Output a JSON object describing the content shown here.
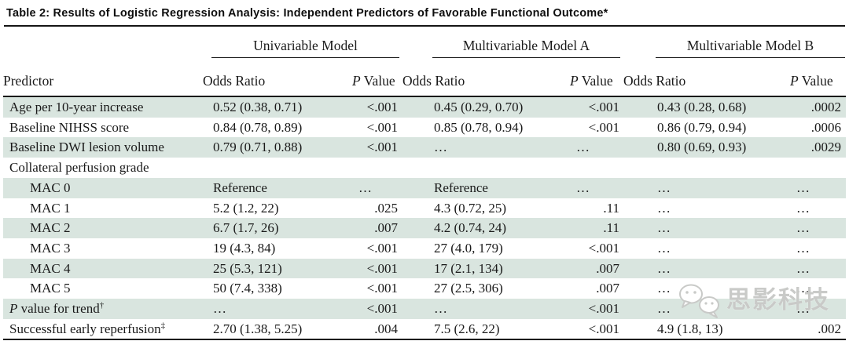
{
  "title": "Table 2: Results of Logistic Regression Analysis: Independent Predictors of Favorable Functional Outcome*",
  "colors": {
    "row_stripe": "#d9e5df",
    "text": "#1a1a1a",
    "rule": "#141414",
    "watermark_gray": "#c9cac8"
  },
  "table": {
    "predictor_header": "Predictor",
    "groups": [
      "Univariable Model",
      "Multivariable Model A",
      "Multivariable Model B"
    ],
    "or_header": "Odds Ratio",
    "p_header": {
      "italic": "P",
      "rest": " Value"
    },
    "rows": [
      {
        "predictor": "Age per 10-year increase",
        "cells": [
          "0.52 (0.38, 0.71)",
          "<.001",
          "0.45 (0.29, 0.70)",
          "<.001",
          "0.43 (0.28, 0.68)",
          ".0002"
        ]
      },
      {
        "predictor": "Baseline NIHSS score",
        "cells": [
          "0.84 (0.78, 0.89)",
          "<.001",
          "0.85 (0.78, 0.94)",
          "<.001",
          "0.86 (0.79, 0.94)",
          ".0006"
        ]
      },
      {
        "predictor": "Baseline DWI lesion volume",
        "cells": [
          "0.79 (0.71, 0.88)",
          "<.001",
          "…",
          "…",
          "0.80 (0.69, 0.93)",
          ".0029"
        ]
      },
      {
        "predictor": "Collateral perfusion grade",
        "cells": [
          "",
          "",
          "",
          "",
          "",
          ""
        ]
      },
      {
        "predictor": "MAC 0",
        "indent": true,
        "cells": [
          "Reference",
          "…",
          "Reference",
          "…",
          "…",
          "…"
        ]
      },
      {
        "predictor": "MAC 1",
        "indent": true,
        "cells": [
          "5.2 (1.2, 22)",
          ".025",
          "4.3 (0.72, 25)",
          ".11",
          "…",
          "…"
        ]
      },
      {
        "predictor": "MAC 2",
        "indent": true,
        "cells": [
          "6.7 (1.7, 26)",
          ".007",
          "4.2 (0.74, 24)",
          ".11",
          "…",
          "…"
        ]
      },
      {
        "predictor": "MAC 3",
        "indent": true,
        "cells": [
          "19 (4.3, 84)",
          "<.001",
          "27 (4.0, 179)",
          "<.001",
          "…",
          "…"
        ]
      },
      {
        "predictor": "MAC 4",
        "indent": true,
        "cells": [
          "25 (5.3, 121)",
          "<.001",
          "17 (2.1, 134)",
          ".007",
          "…",
          "…"
        ]
      },
      {
        "predictor": "MAC 5",
        "indent": true,
        "cells": [
          "50 (7.4, 338)",
          "<.001",
          "27 (2.5, 306)",
          ".007",
          "…",
          "…"
        ]
      },
      {
        "predictor_italic": "P",
        "predictor": " value for trend",
        "sup": "†",
        "cells": [
          "…",
          "<.001",
          "…",
          "<.001",
          "…",
          "…"
        ]
      },
      {
        "predictor": "Successful early reperfusion",
        "sup": "‡",
        "cells": [
          "2.70 (1.38, 5.25)",
          ".004",
          "7.5 (2.6, 22)",
          "<.001",
          "4.9 (1.8, 13)",
          ".002"
        ]
      }
    ]
  },
  "watermark": {
    "text": "思影科技",
    "icon": "wechat-chat-bubbles-icon"
  }
}
